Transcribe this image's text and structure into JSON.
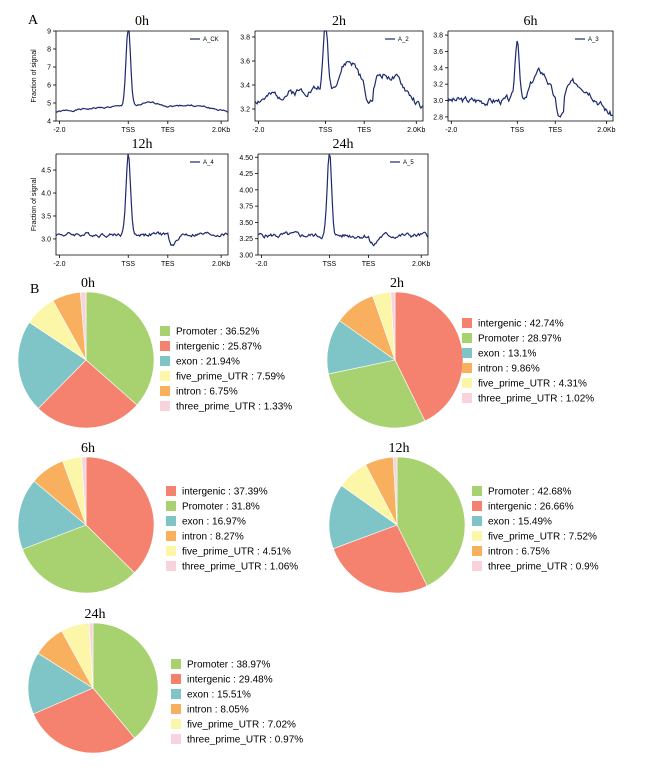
{
  "figure": {
    "label_a": "A",
    "label_b": "B",
    "ylabel": "Fraction of signal"
  },
  "chart_data": [
    {
      "type": "line",
      "panel": "A",
      "title": "0h",
      "legend": "A_CK",
      "x_ticks": [
        "-2.0",
        "TSS",
        "TES",
        "2.0Kb"
      ],
      "y_ticks": [
        "4",
        "5",
        "6",
        "7",
        "8",
        "9"
      ],
      "ylim": [
        4,
        9
      ],
      "profile": {
        "base": 4.5,
        "peak": 9.0,
        "drift": 0.35,
        "mid": 0.15,
        "noise": 0.08,
        "dip": 0.0,
        "seed": 1
      }
    },
    {
      "type": "line",
      "panel": "A",
      "title": "2h",
      "legend": "A_2",
      "x_ticks": [
        "-2.0",
        "TSS",
        "TES",
        "2.0Kb"
      ],
      "y_ticks": [
        "3.2",
        "3.4",
        "3.6",
        "3.8"
      ],
      "ylim": [
        3.1,
        3.85
      ],
      "profile": {
        "base": 3.27,
        "peak": 3.83,
        "drift": 0.12,
        "mid": 0.2,
        "noise": 0.05,
        "dip": 0.12,
        "seed": 2
      }
    },
    {
      "type": "line",
      "panel": "A",
      "title": "6h",
      "legend": "A_3",
      "x_ticks": [
        "-2.0",
        "TSS",
        "TES",
        "2.0Kb"
      ],
      "y_ticks": [
        "2.8",
        "3.0",
        "3.2",
        "3.4",
        "3.6",
        "3.8"
      ],
      "ylim": [
        2.75,
        3.85
      ],
      "profile": {
        "base": 3.0,
        "peak": 3.77,
        "drift": 0.0,
        "mid": 0.35,
        "noise": 0.07,
        "dip": 0.2,
        "seed": 3
      }
    },
    {
      "type": "line",
      "panel": "A",
      "title": "12h",
      "legend": "A_4",
      "x_ticks": [
        "-2.0",
        "TSS",
        "TES",
        "2.0Kb"
      ],
      "y_ticks": [
        "3.0",
        "3.5",
        "4.0",
        "4.5"
      ],
      "ylim": [
        2.65,
        4.85
      ],
      "profile": {
        "base": 3.1,
        "peak": 4.85,
        "drift": 0.0,
        "mid": 0.0,
        "noise": 0.07,
        "dip": 0.25,
        "seed": 4
      }
    },
    {
      "type": "line",
      "panel": "A",
      "title": "24h",
      "legend": "A_5",
      "x_ticks": [
        "-2.0",
        "TSS",
        "TES",
        "2.0Kb"
      ],
      "y_ticks": [
        "3.00",
        "3.25",
        "3.50",
        "3.75",
        "4.00",
        "4.25",
        "4.50"
      ],
      "ylim": [
        3.0,
        4.55
      ],
      "profile": {
        "base": 3.3,
        "peak": 4.55,
        "drift": 0.0,
        "mid": 0.0,
        "noise": 0.06,
        "dip": 0.15,
        "seed": 5
      }
    },
    {
      "type": "pie",
      "panel": "B",
      "title": "0h",
      "slices": [
        {
          "label": "Promoter",
          "value": 36.52,
          "text": "Promoter : 36.52%",
          "color": "#a7d26f"
        },
        {
          "label": "intergenic",
          "value": 25.87,
          "text": "intergenic : 25.87%",
          "color": "#f5826e"
        },
        {
          "label": "exon",
          "value": 21.94,
          "text": "exon : 21.94%",
          "color": "#7fc5c7"
        },
        {
          "label": "five_prime_UTR",
          "value": 7.59,
          "text": "five_prime_UTR : 7.59%",
          "color": "#fbf6a8"
        },
        {
          "label": "intron",
          "value": 6.75,
          "text": "intron : 6.75%",
          "color": "#f8b05e"
        },
        {
          "label": "three_prime_UTR",
          "value": 1.33,
          "text": "three_prime_UTR : 1.33%",
          "color": "#f8d3dc"
        }
      ]
    },
    {
      "type": "pie",
      "panel": "B",
      "title": "2h",
      "slices": [
        {
          "label": "intergenic",
          "value": 42.74,
          "text": "intergenic : 42.74%",
          "color": "#f5826e"
        },
        {
          "label": "Promoter",
          "value": 28.97,
          "text": "Promoter : 28.97%",
          "color": "#a7d26f"
        },
        {
          "label": "exon",
          "value": 13.1,
          "text": "exon : 13.1%",
          "color": "#7fc5c7"
        },
        {
          "label": "intron",
          "value": 9.86,
          "text": "intron : 9.86%",
          "color": "#f8b05e"
        },
        {
          "label": "five_prime_UTR",
          "value": 4.31,
          "text": "five_prime_UTR : 4.31%",
          "color": "#fbf6a8"
        },
        {
          "label": "three_prime_UTR",
          "value": 1.02,
          "text": "three_prime_UTR : 1.02%",
          "color": "#f8d3dc"
        }
      ]
    },
    {
      "type": "pie",
      "panel": "B",
      "title": "6h",
      "slices": [
        {
          "label": "intergenic",
          "value": 37.39,
          "text": "intergenic : 37.39%",
          "color": "#f5826e"
        },
        {
          "label": "Promoter",
          "value": 31.8,
          "text": "Promoter : 31.8%",
          "color": "#a7d26f"
        },
        {
          "label": "exon",
          "value": 16.97,
          "text": "exon : 16.97%",
          "color": "#7fc5c7"
        },
        {
          "label": "intron",
          "value": 8.27,
          "text": "intron : 8.27%",
          "color": "#f8b05e"
        },
        {
          "label": "five_prime_UTR",
          "value": 4.51,
          "text": "five_prime_UTR : 4.51%",
          "color": "#fbf6a8"
        },
        {
          "label": "three_prime_UTR",
          "value": 1.06,
          "text": "three_prime_UTR : 1.06%",
          "color": "#f8d3dc"
        }
      ]
    },
    {
      "type": "pie",
      "panel": "B",
      "title": "12h",
      "slices": [
        {
          "label": "Promoter",
          "value": 42.68,
          "text": "Promoter : 42.68%",
          "color": "#a7d26f"
        },
        {
          "label": "intergenic",
          "value": 26.66,
          "text": "intergenic : 26.66%",
          "color": "#f5826e"
        },
        {
          "label": "exon",
          "value": 15.49,
          "text": "exon : 15.49%",
          "color": "#7fc5c7"
        },
        {
          "label": "five_prime_UTR",
          "value": 7.52,
          "text": "five_prime_UTR : 7.52%",
          "color": "#fbf6a8"
        },
        {
          "label": "intron",
          "value": 6.75,
          "text": "intron : 6.75%",
          "color": "#f8b05e"
        },
        {
          "label": "three_prime_UTR",
          "value": 0.9,
          "text": "three_prime_UTR : 0.9%",
          "color": "#f8d3dc"
        }
      ]
    },
    {
      "type": "pie",
      "panel": "B",
      "title": "24h",
      "slices": [
        {
          "label": "Promoter",
          "value": 38.97,
          "text": "Promoter : 38.97%",
          "color": "#a7d26f"
        },
        {
          "label": "intergenic",
          "value": 29.48,
          "text": "intergenic : 29.48%",
          "color": "#f5826e"
        },
        {
          "label": "exon",
          "value": 15.51,
          "text": "exon : 15.51%",
          "color": "#7fc5c7"
        },
        {
          "label": "intron",
          "value": 8.05,
          "text": "intron : 8.05%",
          "color": "#f8b05e"
        },
        {
          "label": "five_prime_UTR",
          "value": 7.02,
          "text": "five_prime_UTR : 7.02%",
          "color": "#fbf6a8"
        },
        {
          "label": "three_prime_UTR",
          "value": 0.97,
          "text": "three_prime_UTR : 0.97%",
          "color": "#f8d3dc"
        }
      ]
    }
  ]
}
